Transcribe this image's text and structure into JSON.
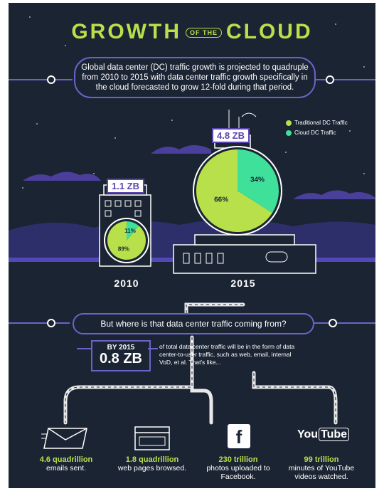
{
  "title": {
    "left": "GROWTH",
    "mid": "OF THE",
    "right": "CLOUD"
  },
  "intro": "Global data center (DC) traffic growth is projected to quadruple from 2010 to 2015 with data center traffic growth specifically in the cloud forecasted to grow 12-fold during that period.",
  "legend": [
    {
      "label": "Traditional DC Traffic",
      "color": "#b8e04a"
    },
    {
      "label": "Cloud DC Traffic",
      "color": "#3ee09a"
    }
  ],
  "year_2010": {
    "year": "2010",
    "total": "1.1 ZB",
    "traditional_pct": 89,
    "cloud_pct": 11,
    "traditional_label": "89%",
    "cloud_label": "11%"
  },
  "year_2015": {
    "year": "2015",
    "total": "4.8 ZB",
    "traditional_pct": 66,
    "cloud_pct": 34,
    "traditional_label": "66%",
    "cloud_label": "34%"
  },
  "question": "But where is that data center traffic coming from?",
  "by2015": {
    "prefix": "BY 2015",
    "value": "0.8 ZB",
    "text": "of total data center traffic will be in the form of data center-to-user traffic, such as web, email, internal VoD, et al. That's like..."
  },
  "stats": [
    {
      "number": "4.6 quadrillion",
      "text": "emails sent.",
      "icon": "envelope-icon"
    },
    {
      "number": "1.8 quadrillion",
      "text": "web pages browsed.",
      "icon": "browser-icon"
    },
    {
      "number": "230 trillion",
      "text": "photos uploaded to Facebook.",
      "icon": "facebook-icon"
    },
    {
      "number": "99 trillion",
      "text": "minutes of YouTube videos watched.",
      "icon": "youtube-icon"
    }
  ],
  "logos": {
    "facebook": "f",
    "youtube_a": "You",
    "youtube_b": "Tube"
  },
  "colors": {
    "background": "#1b2433",
    "accent": "#b8e04a",
    "cloud": "#3ee09a",
    "purple": "#6b63c9",
    "road": "#e8e8e8"
  }
}
